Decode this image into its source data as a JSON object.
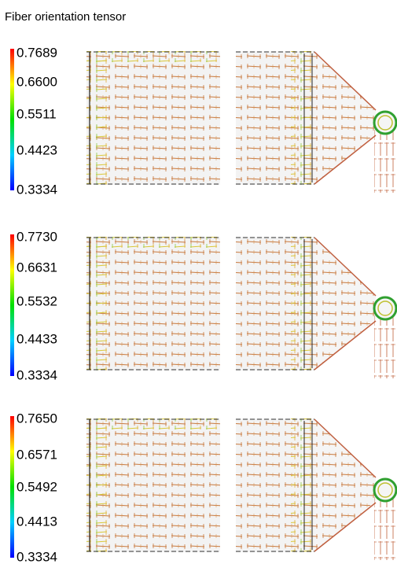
{
  "title": "Fiber orientation tensor",
  "panels": [
    {
      "scale": [
        "0.7689",
        "0.6600",
        "0.5511",
        "0.4423",
        "0.3334"
      ]
    },
    {
      "scale": [
        "0.7730",
        "0.6631",
        "0.5532",
        "0.4433",
        "0.3334"
      ]
    },
    {
      "scale": [
        "0.7650",
        "0.6571",
        "0.5492",
        "0.4413",
        "0.3334"
      ]
    }
  ]
}
